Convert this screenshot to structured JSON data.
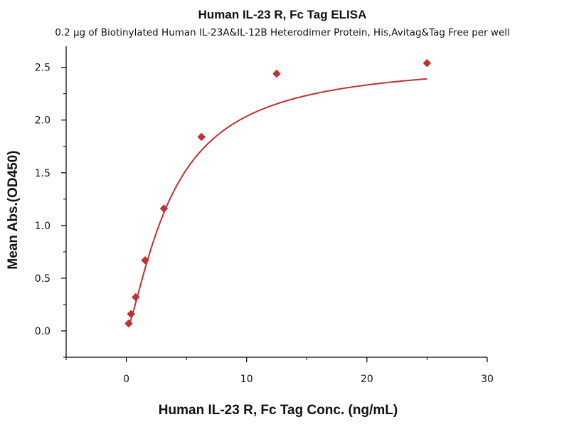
{
  "chart_data": {
    "type": "scatter",
    "title": "Human IL-23 R, Fc Tag ELISA",
    "subtitle": "0.2 μg of Biotinylated Human IL-23A&IL-12B Heterodimer Protein, His,Avitag&Tag Free per well",
    "xlabel": "Human IL-23 R, Fc Tag Conc. (ng/mL)",
    "ylabel": "Mean Abs.(OD450)",
    "xlim": [
      -5,
      30
    ],
    "ylim": [
      -0.25,
      2.7
    ],
    "x_ticks": [
      0,
      10,
      20,
      30
    ],
    "x_tick_labels": [
      "0",
      "10",
      "20",
      "30"
    ],
    "y_ticks": [
      0.0,
      0.5,
      1.0,
      1.5,
      2.0,
      2.5
    ],
    "y_tick_labels": [
      "0.0",
      "0.5",
      "1.0",
      "1.5",
      "2.0",
      "2.5"
    ],
    "grid": false,
    "color": "#c0302e",
    "series": [
      {
        "marker": "diamond",
        "points": [
          {
            "x": 0.195,
            "y": 0.07
          },
          {
            "x": 0.39,
            "y": 0.16
          },
          {
            "x": 0.781,
            "y": 0.32
          },
          {
            "x": 1.5625,
            "y": 0.67
          },
          {
            "x": 3.125,
            "y": 1.16
          },
          {
            "x": 6.25,
            "y": 1.84
          },
          {
            "x": 12.5,
            "y": 2.44
          },
          {
            "x": 25,
            "y": 2.54
          }
        ],
        "fit_curve": {
          "model": "four-parameter logistic",
          "bottom": 0.0,
          "top": 2.57,
          "ec50": 3.77,
          "hill": 1.37,
          "x_range": [
            0.195,
            25
          ]
        }
      }
    ]
  }
}
